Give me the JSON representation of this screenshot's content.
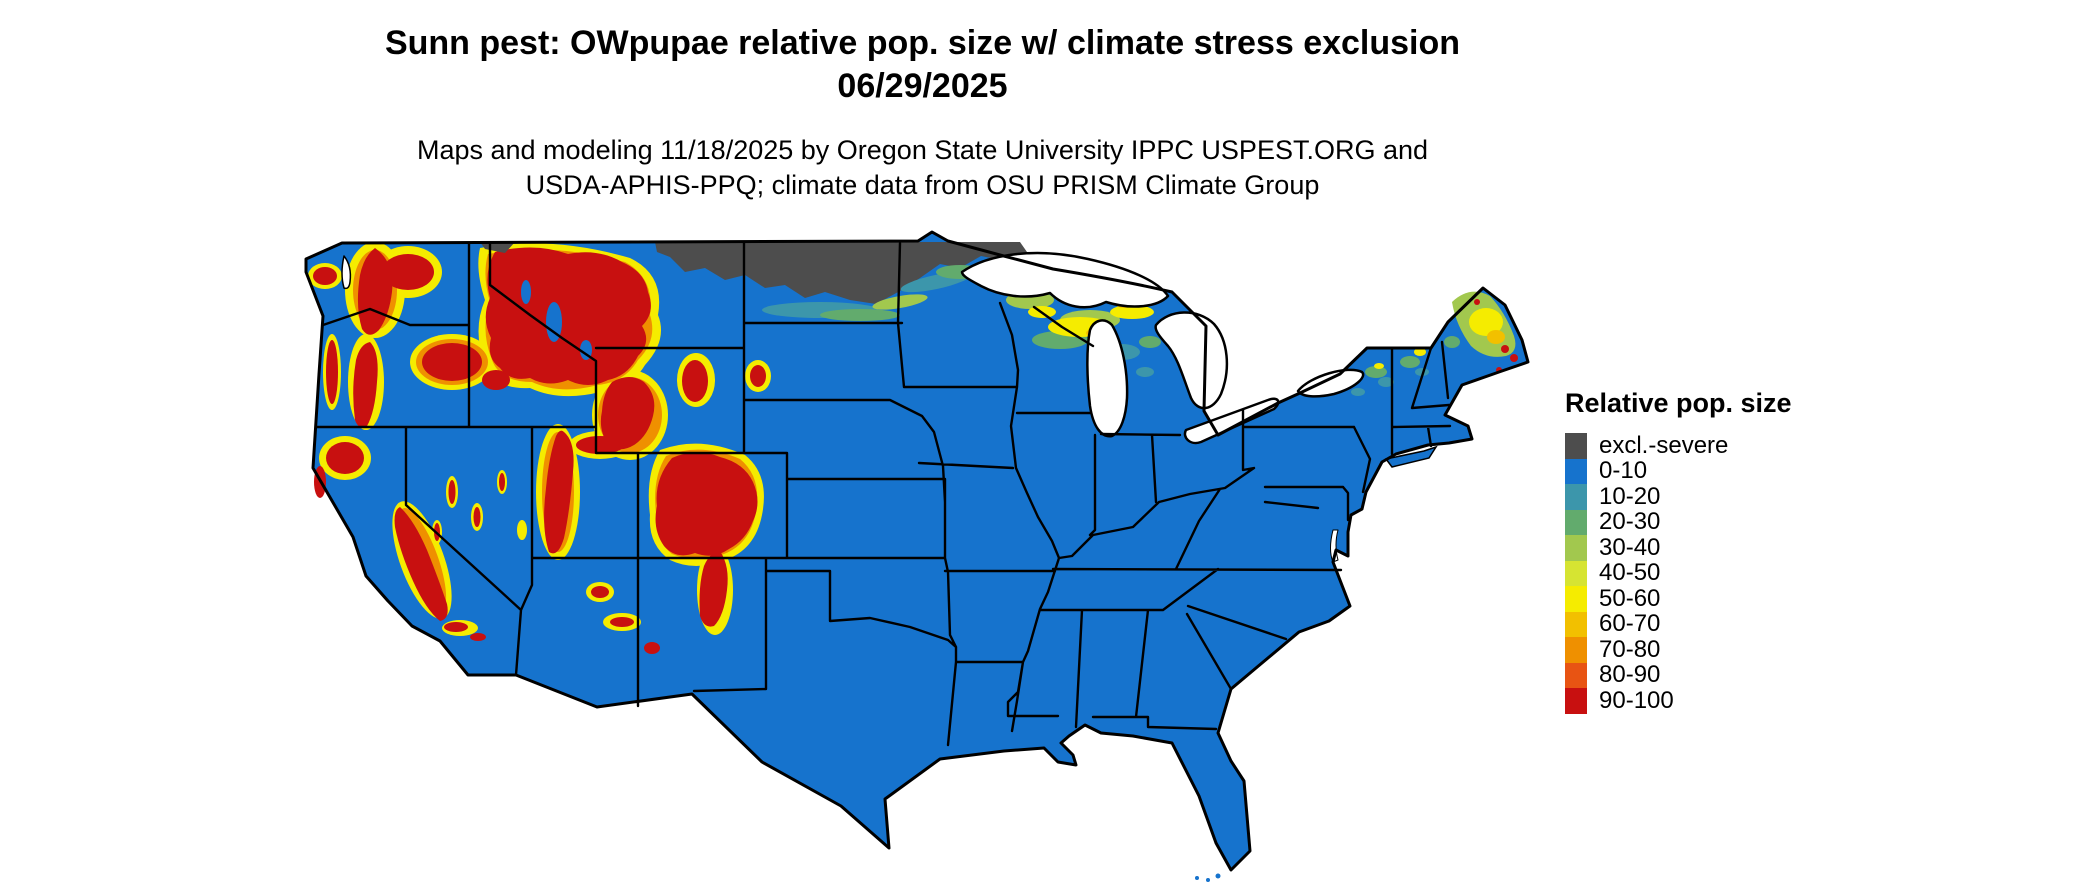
{
  "title": {
    "line1": "Sunn pest: OWpupae relative pop. size w/ climate stress exclusion",
    "line2": "06/29/2025"
  },
  "subtitle": {
    "line1": "Maps and modeling 11/18/2025 by Oregon State University IPPC USPEST.ORG and",
    "line2": "USDA-APHIS-PPQ; climate data from OSU PRISM Climate Group"
  },
  "legend": {
    "title": "Relative pop. size",
    "items": [
      {
        "label": "excl.-severe",
        "color": "#4d4d4d"
      },
      {
        "label": "0-10",
        "color": "#1673cd"
      },
      {
        "label": "10-20",
        "color": "#3c96ab"
      },
      {
        "label": "20-30",
        "color": "#62ab6d"
      },
      {
        "label": "30-40",
        "color": "#a2c84e"
      },
      {
        "label": "40-50",
        "color": "#d6e432"
      },
      {
        "label": "50-60",
        "color": "#f5ec00"
      },
      {
        "label": "60-70",
        "color": "#f2c000"
      },
      {
        "label": "70-80",
        "color": "#ef9000"
      },
      {
        "label": "80-90",
        "color": "#e85413"
      },
      {
        "label": "90-100",
        "color": "#c81010"
      }
    ]
  },
  "map": {
    "land_base_color": "#1673cd",
    "water_background_color": "#ffffff",
    "boundary_color": "#000000"
  }
}
